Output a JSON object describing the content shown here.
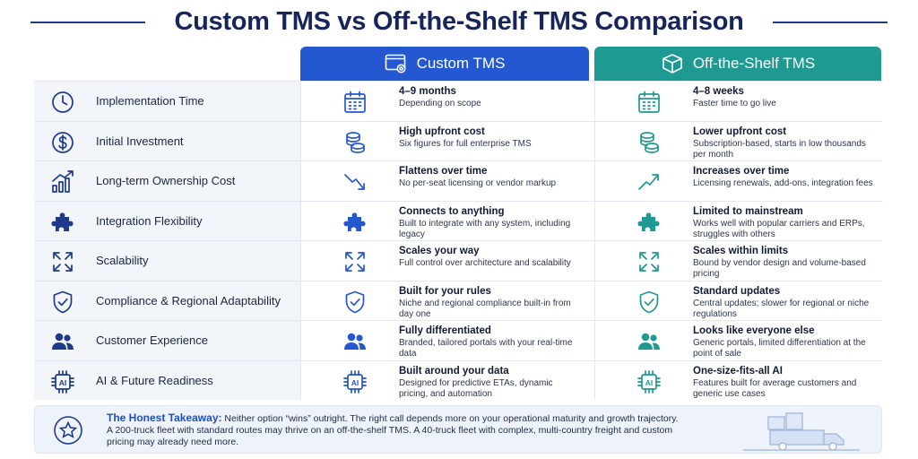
{
  "title": "Custom TMS vs Off-the-Shelf TMS Comparison",
  "columns": {
    "custom": "Custom TMS",
    "shelf": "Off-the-Shelf TMS"
  },
  "colors": {
    "custom_accent": "#2458d0",
    "shelf_accent": "#1f9a92",
    "criterion_icon": "#1e3a8a"
  },
  "rows": [
    {
      "criterion": "Implementation Time",
      "icon": "clock-icon",
      "cell_icon": "calendar-icon",
      "custom": {
        "headline": "4–9 months",
        "detail": "Depending on scope"
      },
      "shelf": {
        "headline": "4–8 weeks",
        "detail": "Faster time to go live"
      }
    },
    {
      "criterion": "Initial Investment",
      "icon": "dollar-icon",
      "cell_icon": "coins-icon",
      "custom": {
        "headline": "High upfront cost",
        "detail": "Six figures for full enterprise TMS"
      },
      "shelf": {
        "headline": "Lower upfront cost",
        "detail": "Subscription-based, starts in low thousands per month"
      }
    },
    {
      "criterion": "Long-term Ownership Cost",
      "icon": "growth-chart-icon",
      "cell_icon": "trend-icon",
      "custom": {
        "headline": "Flattens over time",
        "detail": "No per-seat licensing or vendor markup"
      },
      "shelf": {
        "headline": "Increases over time",
        "detail": "Licensing renewals, add-ons, integration fees"
      }
    },
    {
      "criterion": "Integration Flexibility",
      "icon": "puzzle-icon",
      "cell_icon": "puzzle-icon",
      "custom": {
        "headline": "Connects to anything",
        "detail": "Built to integrate with any system, including legacy"
      },
      "shelf": {
        "headline": "Limited to mainstream",
        "detail": "Works well with popular carriers and ERPs, struggles with others"
      }
    },
    {
      "criterion": "Scalability",
      "icon": "expand-icon",
      "cell_icon": "expand-icon",
      "custom": {
        "headline": "Scales your way",
        "detail": "Full control over architecture and scalability"
      },
      "shelf": {
        "headline": "Scales within limits",
        "detail": "Bound by vendor design and volume-based pricing"
      }
    },
    {
      "criterion": "Compliance & Regional Adaptability",
      "icon": "shield-check-icon",
      "cell_icon": "shield-check-icon",
      "custom": {
        "headline": "Built for your rules",
        "detail": "Niche and regional compliance built-in from day one"
      },
      "shelf": {
        "headline": "Standard updates",
        "detail": "Central updates; slower for regional or niche regulations"
      }
    },
    {
      "criterion": "Customer Experience",
      "icon": "users-icon",
      "cell_icon": "users-icon",
      "custom": {
        "headline": "Fully differentiated",
        "detail": "Branded, tailored portals with your real-time data"
      },
      "shelf": {
        "headline": "Looks like everyone else",
        "detail": "Generic portals, limited differentiation at the point of sale"
      }
    },
    {
      "criterion": "AI & Future Readiness",
      "icon": "ai-chip-icon",
      "cell_icon": "ai-chip-icon",
      "custom": {
        "headline": "Built around your data",
        "detail": "Designed for predictive ETAs, dynamic pricing, and automation"
      },
      "shelf": {
        "headline": "One-size-fits-all AI",
        "detail": "Features built for average customers and generic use cases"
      }
    }
  ],
  "takeaway": {
    "label": "The Honest Takeaway:",
    "text": " Neither option “wins” outright. The right call depends more on your operational maturity and growth trajectory. A 200-truck fleet with standard routes may thrive on an off-the-shelf TMS. A 40-truck fleet with complex, multi-country freight and custom pricing may already need more."
  },
  "ai_chip_text": "AI"
}
